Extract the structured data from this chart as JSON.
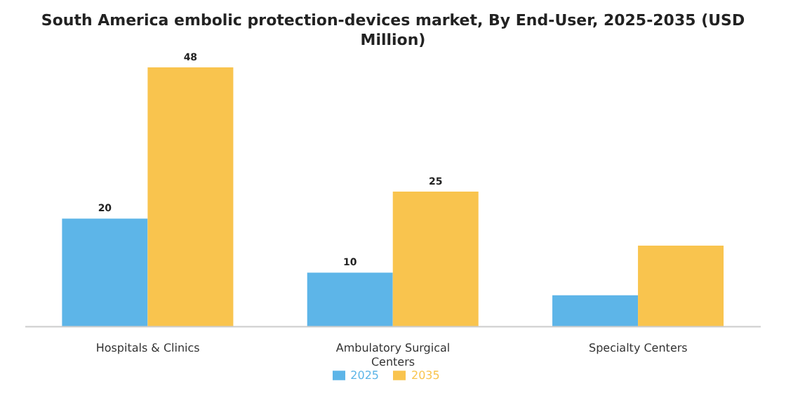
{
  "chart_data": {
    "type": "bar",
    "title": "South America embolic protection-devices market, By End-User, 2025-2035 (USD Million)",
    "categories": [
      "Hospitals & Clinics",
      "Ambulatory Surgical Centers",
      "Specialty Centers"
    ],
    "series": [
      {
        "name": "2025",
        "color": "#5db5e8",
        "values": [
          20,
          10,
          5.8
        ],
        "value_labels": [
          "20",
          "10",
          null
        ]
      },
      {
        "name": "2035",
        "color": "#f9c44e",
        "values": [
          48,
          25,
          15
        ],
        "value_labels": [
          "48",
          "25",
          null
        ]
      }
    ],
    "legend": "bottom",
    "grid": false
  }
}
